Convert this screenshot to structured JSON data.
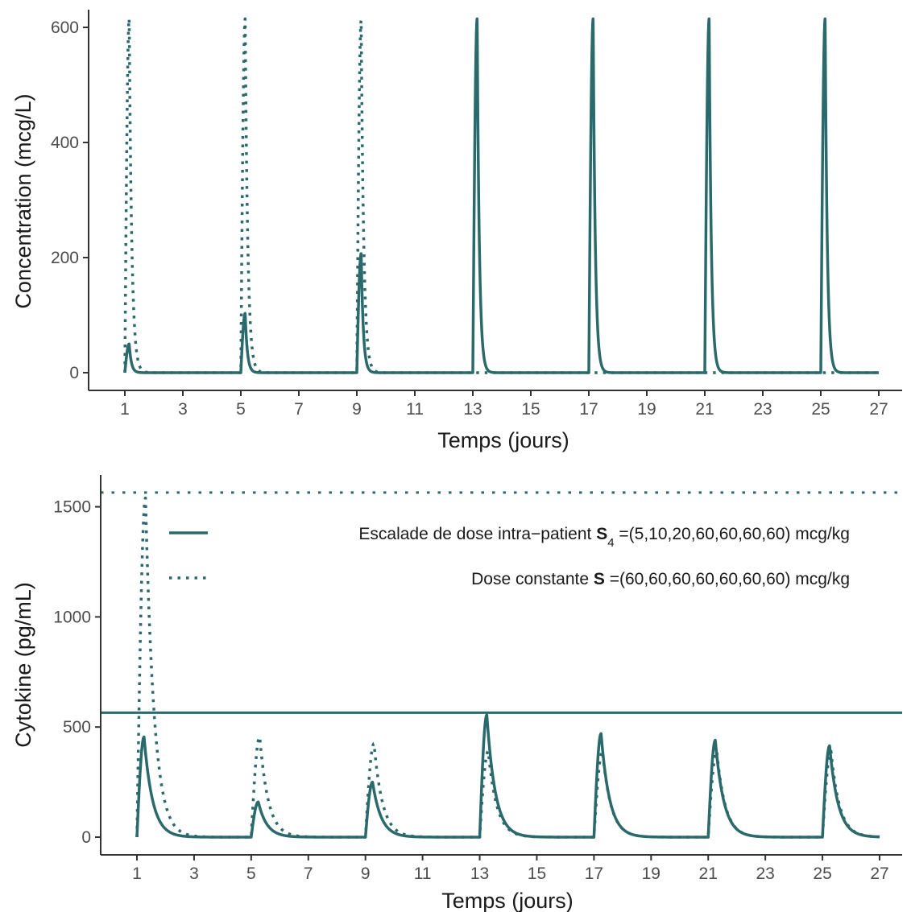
{
  "chart_data": [
    {
      "type": "line",
      "xlabel": "Temps (jours)",
      "ylabel": "Concentration (mcg/L)",
      "xlim": [
        0.5,
        27.5
      ],
      "ylim": [
        -30,
        645
      ],
      "x_ticks": [
        1,
        3,
        5,
        7,
        9,
        11,
        13,
        15,
        17,
        19,
        21,
        23,
        25,
        27
      ],
      "y_ticks": [
        0,
        200,
        400,
        600
      ],
      "grid": false,
      "dose_days": [
        1,
        5,
        9,
        13,
        17,
        21,
        25
      ],
      "series": [
        {
          "style": "solid",
          "color": "#2b6a6c",
          "peak_values": [
            50,
            103,
            207,
            615,
            615,
            615,
            615
          ],
          "peak_offset_days": 0.15,
          "decay_days": 0.075
        },
        {
          "style": "dotted",
          "color": "#2b6a6c",
          "peak_values": [
            615,
            615,
            612
          ],
          "peak_offset_days": 0.15,
          "decay_days": 0.09
        }
      ]
    },
    {
      "type": "line",
      "xlabel": "Temps (jours)",
      "ylabel": "Cytokine (pg/mL)",
      "xlim": [
        0.5,
        27.5
      ],
      "ylim": [
        -80,
        1640
      ],
      "x_ticks": [
        1,
        3,
        5,
        7,
        9,
        11,
        13,
        15,
        17,
        19,
        21,
        23,
        25,
        27
      ],
      "y_ticks": [
        0,
        500,
        1000,
        1500
      ],
      "grid": false,
      "legend_position": "top-right",
      "legend": [
        {
          "style": "solid",
          "text_pre": "Escalade de dose intra−patient ",
          "symbol": "S",
          "subscript": "4",
          "text_post": " =(5,10,20,60,60,60,60) mcg/kg"
        },
        {
          "style": "dotted",
          "text_pre": "Dose constante ",
          "symbol": "S",
          "subscript": "",
          "text_post": " =(60,60,60,60,60,60,60) mcg/kg"
        }
      ],
      "hlines": [
        {
          "style": "solid",
          "y": 565
        },
        {
          "style": "dotted",
          "y": 1565
        }
      ],
      "dose_days": [
        1,
        5,
        9,
        13,
        17,
        21,
        25
      ],
      "series": [
        {
          "style": "solid",
          "color": "#2b6a6c",
          "peak_values": [
            455,
            160,
            250,
            555,
            470,
            440,
            415
          ],
          "peak_offset_days": 0.25,
          "decay_days": 0.3
        },
        {
          "style": "dotted",
          "color": "#2b6a6c",
          "peak_values": [
            1540,
            455,
            425,
            390,
            390,
            390,
            390
          ],
          "peak_offset_days": 0.3,
          "decay_days": 0.3
        }
      ]
    }
  ]
}
